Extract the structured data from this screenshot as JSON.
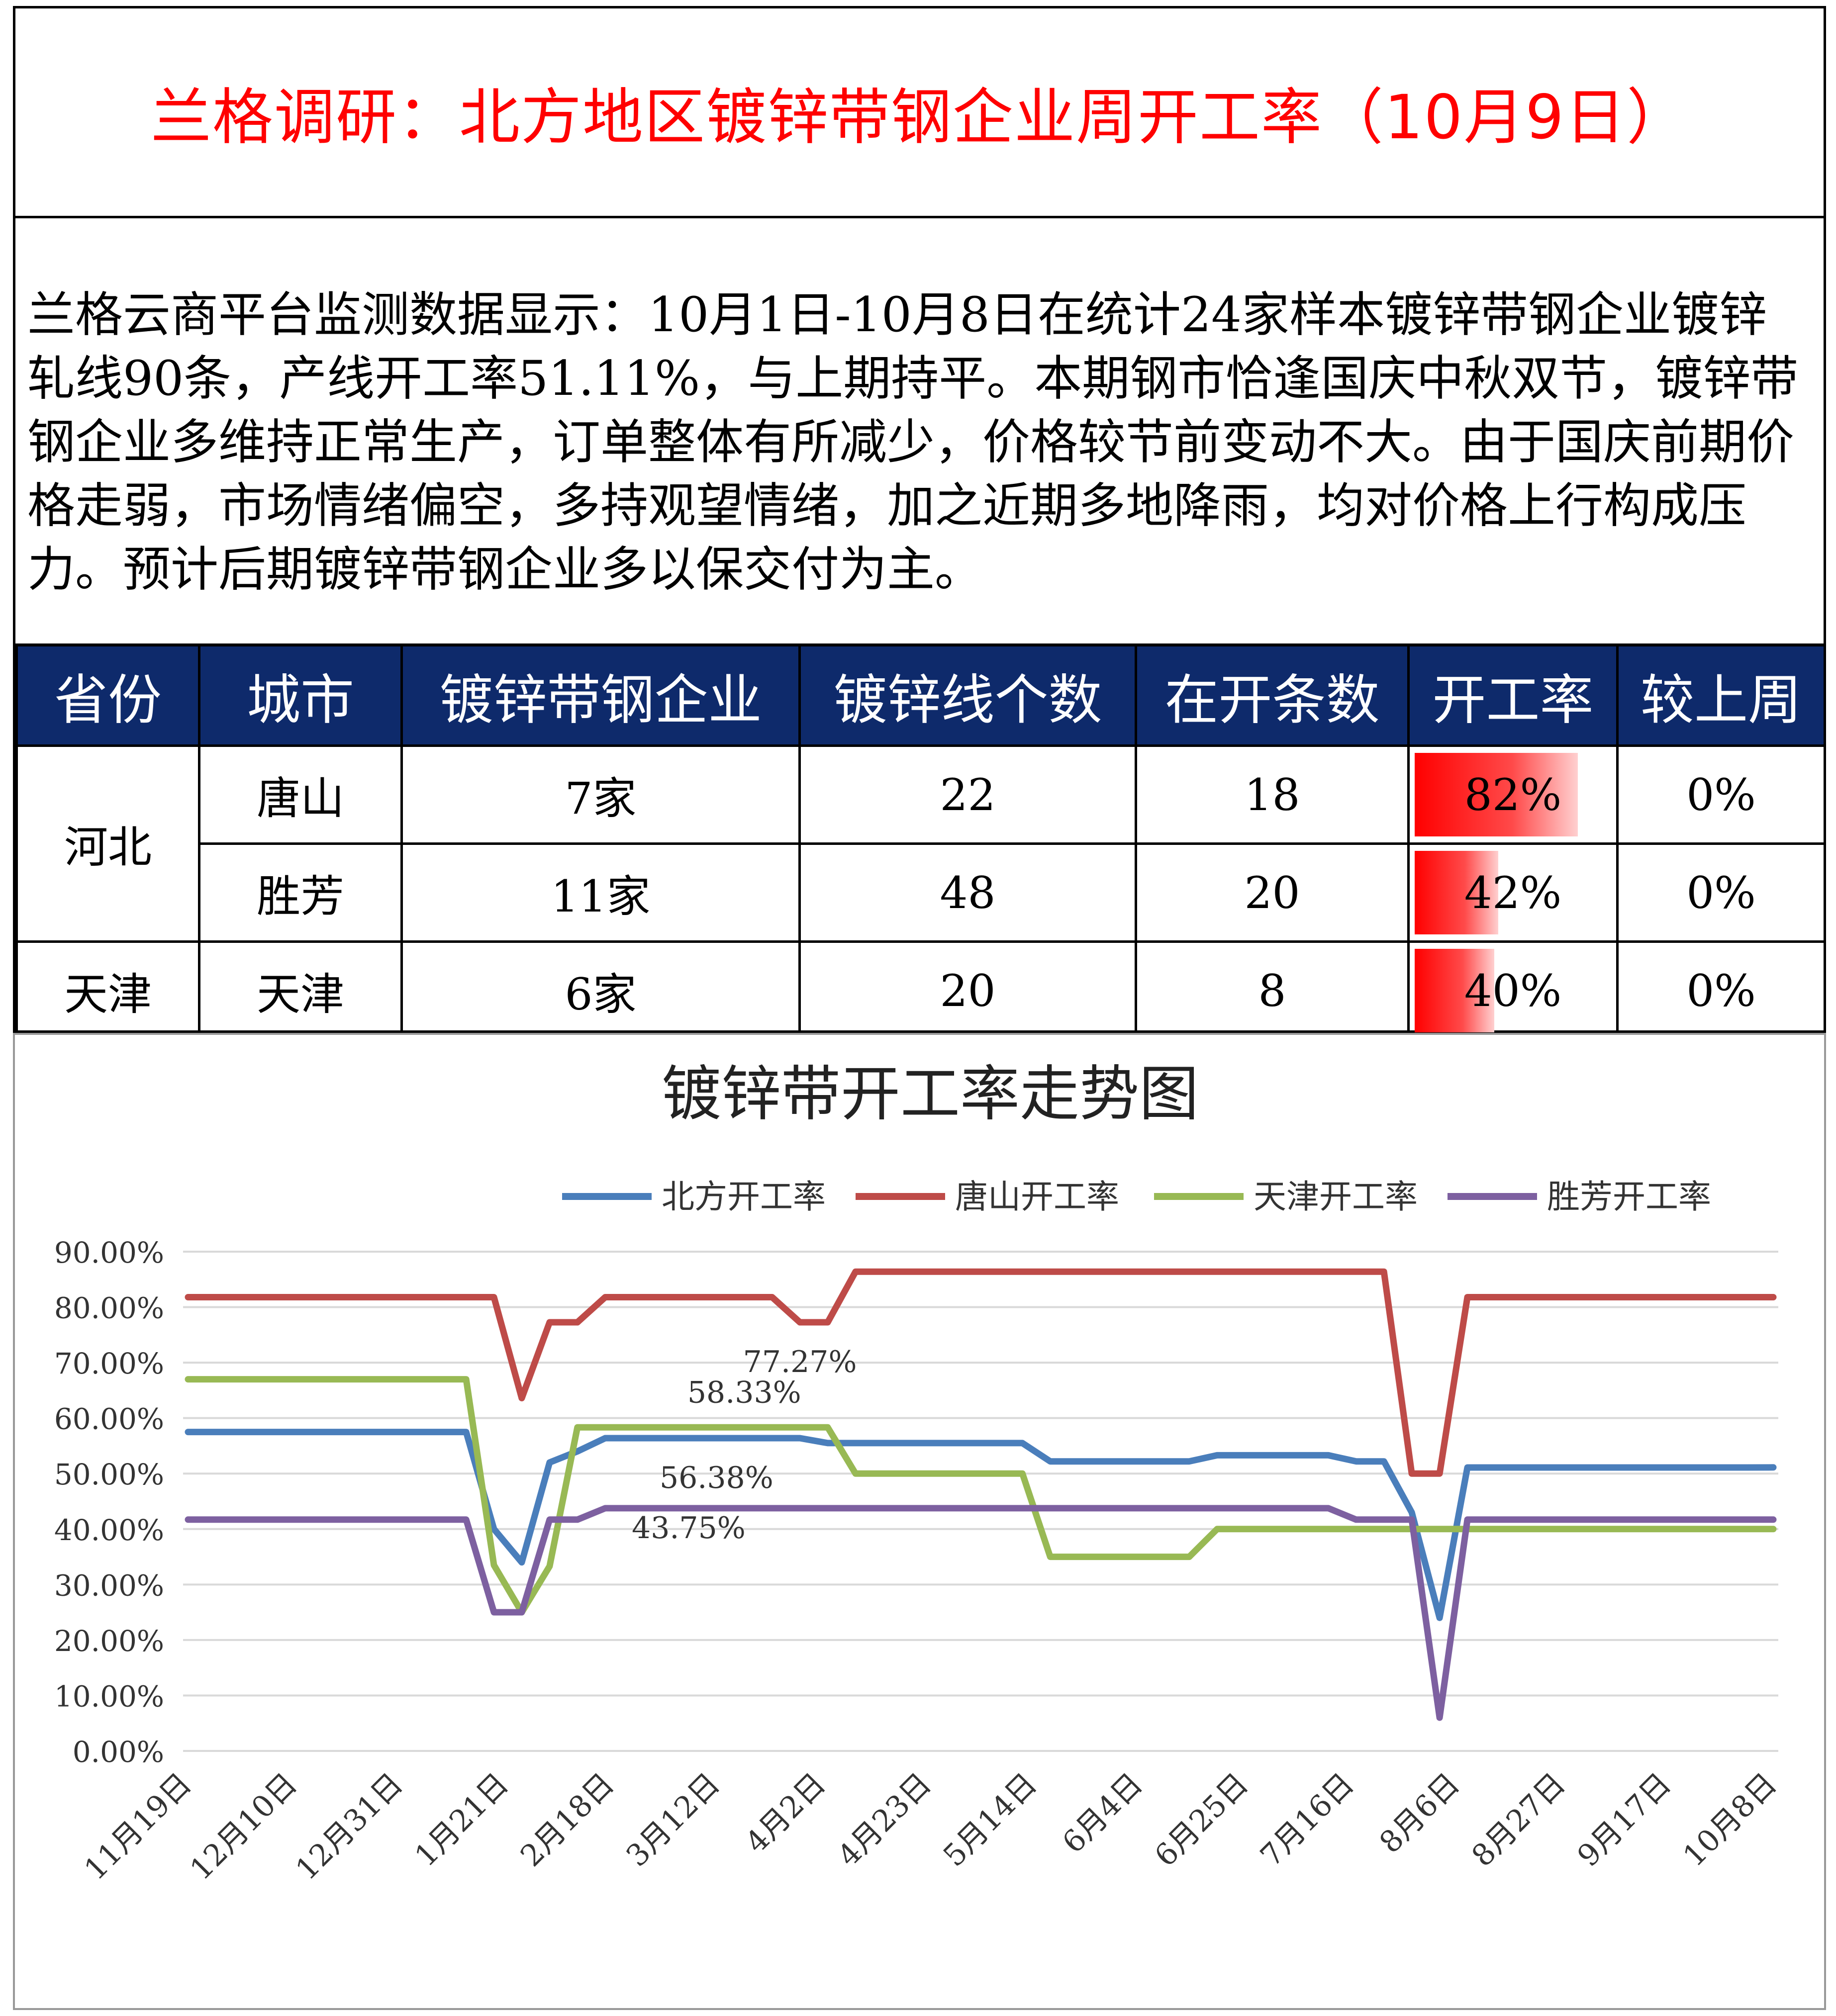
{
  "header": {
    "title": "兰格调研：北方地区镀锌带钢企业周开工率（10月9日）"
  },
  "summary": {
    "text": "兰格云商平台监测数据显示：10月1日-10月8日在统计24家样本镀锌带钢企业镀锌轧线90条，产线开工率51.11%，与上期持平。本期钢市恰逢国庆中秋双节，镀锌带钢企业多维持正常生产，订单整体有所减少，价格较节前变动不大。由于国庆前期价格走弱，市场情绪偏空，多持观望情绪，加之近期多地降雨，均对价格上行构成压力。预计后期镀锌带钢企业多以保交付为主。"
  },
  "table": {
    "headers": [
      "省份",
      "城市",
      "镀锌带钢企业",
      "镀锌线个数",
      "在开条数",
      "开工率",
      "较上周"
    ],
    "rows": [
      {
        "province": "河北",
        "city": "唐山",
        "enterprises": "7家",
        "lines": "22",
        "open": "18",
        "rate": "82%",
        "rate_value": 0.82,
        "change": "0%"
      },
      {
        "province": "",
        "city": "胜芳",
        "enterprises": "11家",
        "lines": "48",
        "open": "20",
        "rate": "42%",
        "rate_value": 0.42,
        "change": "0%"
      },
      {
        "province": "天津",
        "city": "天津",
        "enterprises": "6家",
        "lines": "20",
        "open": "8",
        "rate": "40%",
        "rate_value": 0.4,
        "change": "0%"
      }
    ],
    "bar_color": "#ff0000"
  },
  "chart_data": {
    "type": "line",
    "title": "镀锌带开工率走势图",
    "xlabel": "",
    "ylabel": "",
    "ylim": [
      0,
      90
    ],
    "y_ticks": [
      "0.00%",
      "10.00%",
      "20.00%",
      "30.00%",
      "40.00%",
      "50.00%",
      "60.00%",
      "70.00%",
      "80.00%",
      "90.00%"
    ],
    "x_tick_labels": [
      "11月19日",
      "12月10日",
      "12月31日",
      "1月21日",
      "2月18日",
      "3月12日",
      "4月2日",
      "4月23日",
      "5月14日",
      "6月4日",
      "6月25日",
      "7月16日",
      "8月6日",
      "8月27日",
      "9月17日",
      "10月8日"
    ],
    "grid": true,
    "legend": "top",
    "series": [
      {
        "name": "北方开工率",
        "color": "#4a7ebb",
        "values": [
          57.5,
          57.5,
          57.5,
          57.5,
          57.5,
          57.5,
          57.5,
          57.5,
          57.5,
          57.5,
          57.5,
          40,
          34,
          52,
          54,
          56.38,
          56.38,
          56.38,
          56.38,
          56.38,
          56.38,
          56.38,
          56.38,
          55.5,
          55.5,
          55.5,
          55.5,
          55.5,
          55.5,
          55.5,
          55.5,
          52.2,
          52.2,
          52.2,
          52.2,
          52.2,
          52.2,
          53.3,
          53.3,
          53.3,
          53.3,
          53.3,
          52.2,
          52.2,
          43,
          24,
          51.1,
          51.1,
          51.1,
          51.1,
          51.1,
          51.1,
          51.1,
          51.1,
          51.1,
          51.1,
          51.1,
          51.11
        ]
      },
      {
        "name": "唐山开工率",
        "color": "#be4b48",
        "values": [
          81.8,
          81.8,
          81.8,
          81.8,
          81.8,
          81.8,
          81.8,
          81.8,
          81.8,
          81.8,
          81.8,
          81.8,
          63.6,
          77.27,
          77.27,
          81.8,
          81.8,
          81.8,
          81.8,
          81.8,
          81.8,
          81.8,
          77.27,
          77.27,
          86.4,
          86.4,
          86.4,
          86.4,
          86.4,
          86.4,
          86.4,
          86.4,
          86.4,
          86.4,
          86.4,
          86.4,
          86.4,
          86.4,
          86.4,
          86.4,
          86.4,
          86.4,
          86.4,
          86.4,
          50,
          50,
          81.8,
          81.8,
          81.8,
          81.8,
          81.8,
          81.8,
          81.8,
          81.8,
          81.8,
          81.8,
          81.8,
          81.8
        ]
      },
      {
        "name": "天津开工率",
        "color": "#98b954",
        "values": [
          67,
          67,
          67,
          67,
          67,
          67,
          67,
          67,
          67,
          67,
          67,
          33.5,
          25,
          33.3,
          58.33,
          58.33,
          58.33,
          58.33,
          58.33,
          58.33,
          58.33,
          58.33,
          58.33,
          58.33,
          50,
          50,
          50,
          50,
          50,
          50,
          50,
          35,
          35,
          35,
          35,
          35,
          35,
          40,
          40,
          40,
          40,
          40,
          40,
          40,
          40,
          40,
          40,
          40,
          40,
          40,
          40,
          40,
          40,
          40,
          40,
          40,
          40,
          40
        ]
      },
      {
        "name": "胜芳开工率",
        "color": "#7d60a0",
        "values": [
          41.7,
          41.7,
          41.7,
          41.7,
          41.7,
          41.7,
          41.7,
          41.7,
          41.7,
          41.7,
          41.7,
          25,
          25,
          41.7,
          41.7,
          43.75,
          43.75,
          43.75,
          43.75,
          43.75,
          43.75,
          43.75,
          43.75,
          43.75,
          43.75,
          43.75,
          43.75,
          43.75,
          43.75,
          43.75,
          43.75,
          43.75,
          43.75,
          43.75,
          43.75,
          43.75,
          43.75,
          43.75,
          43.75,
          43.75,
          43.75,
          43.75,
          41.7,
          41.7,
          41.7,
          6,
          41.7,
          41.7,
          41.7,
          41.7,
          41.7,
          41.7,
          41.7,
          41.7,
          41.7,
          41.7,
          41.7,
          41.7
        ]
      }
    ],
    "annotations": [
      {
        "text": "77.27%",
        "series": 1,
        "index": 22
      },
      {
        "text": "58.33%",
        "series": 2,
        "index": 20
      },
      {
        "text": "56.38%",
        "series": 0,
        "index": 19
      },
      {
        "text": "43.75%",
        "series": 3,
        "index": 18
      }
    ]
  }
}
